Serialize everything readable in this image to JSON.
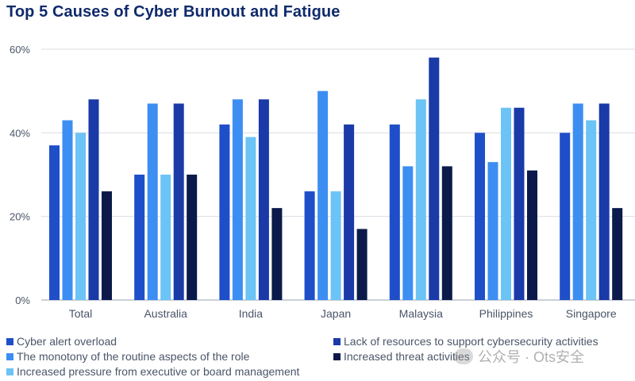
{
  "chart_data": {
    "type": "bar",
    "title": "Top 5 Causes of Cyber Burnout and Fatigue",
    "categories": [
      "Total",
      "Australia",
      "India",
      "Japan",
      "Malaysia",
      "Philippines",
      "Singapore"
    ],
    "series": [
      {
        "name": "Cyber alert overload",
        "color": "#1e4fc8",
        "values": [
          37,
          30,
          42,
          26,
          42,
          40,
          40
        ]
      },
      {
        "name": "The monotony of the routine aspects of the role",
        "color": "#3d8ef2",
        "values": [
          43,
          47,
          48,
          50,
          32,
          33,
          47
        ]
      },
      {
        "name": "Increased pressure from executive or board management",
        "color": "#6cc3f5",
        "values": [
          40,
          30,
          39,
          26,
          48,
          46,
          43
        ]
      },
      {
        "name": "Lack of resources to support cybersecurity activities",
        "color": "#1a3aa8",
        "values": [
          48,
          47,
          48,
          42,
          58,
          46,
          47
        ]
      },
      {
        "name": "Increased threat activities",
        "color": "#0b1a4a",
        "values": [
          26,
          30,
          22,
          17,
          32,
          31,
          22
        ]
      }
    ],
    "yticks": [
      "0%",
      "20%",
      "40%",
      "60%"
    ],
    "ylim": [
      0,
      60
    ],
    "xlabel": "",
    "ylabel": "",
    "grid": true
  },
  "watermark": "公众号 · Ots安全"
}
